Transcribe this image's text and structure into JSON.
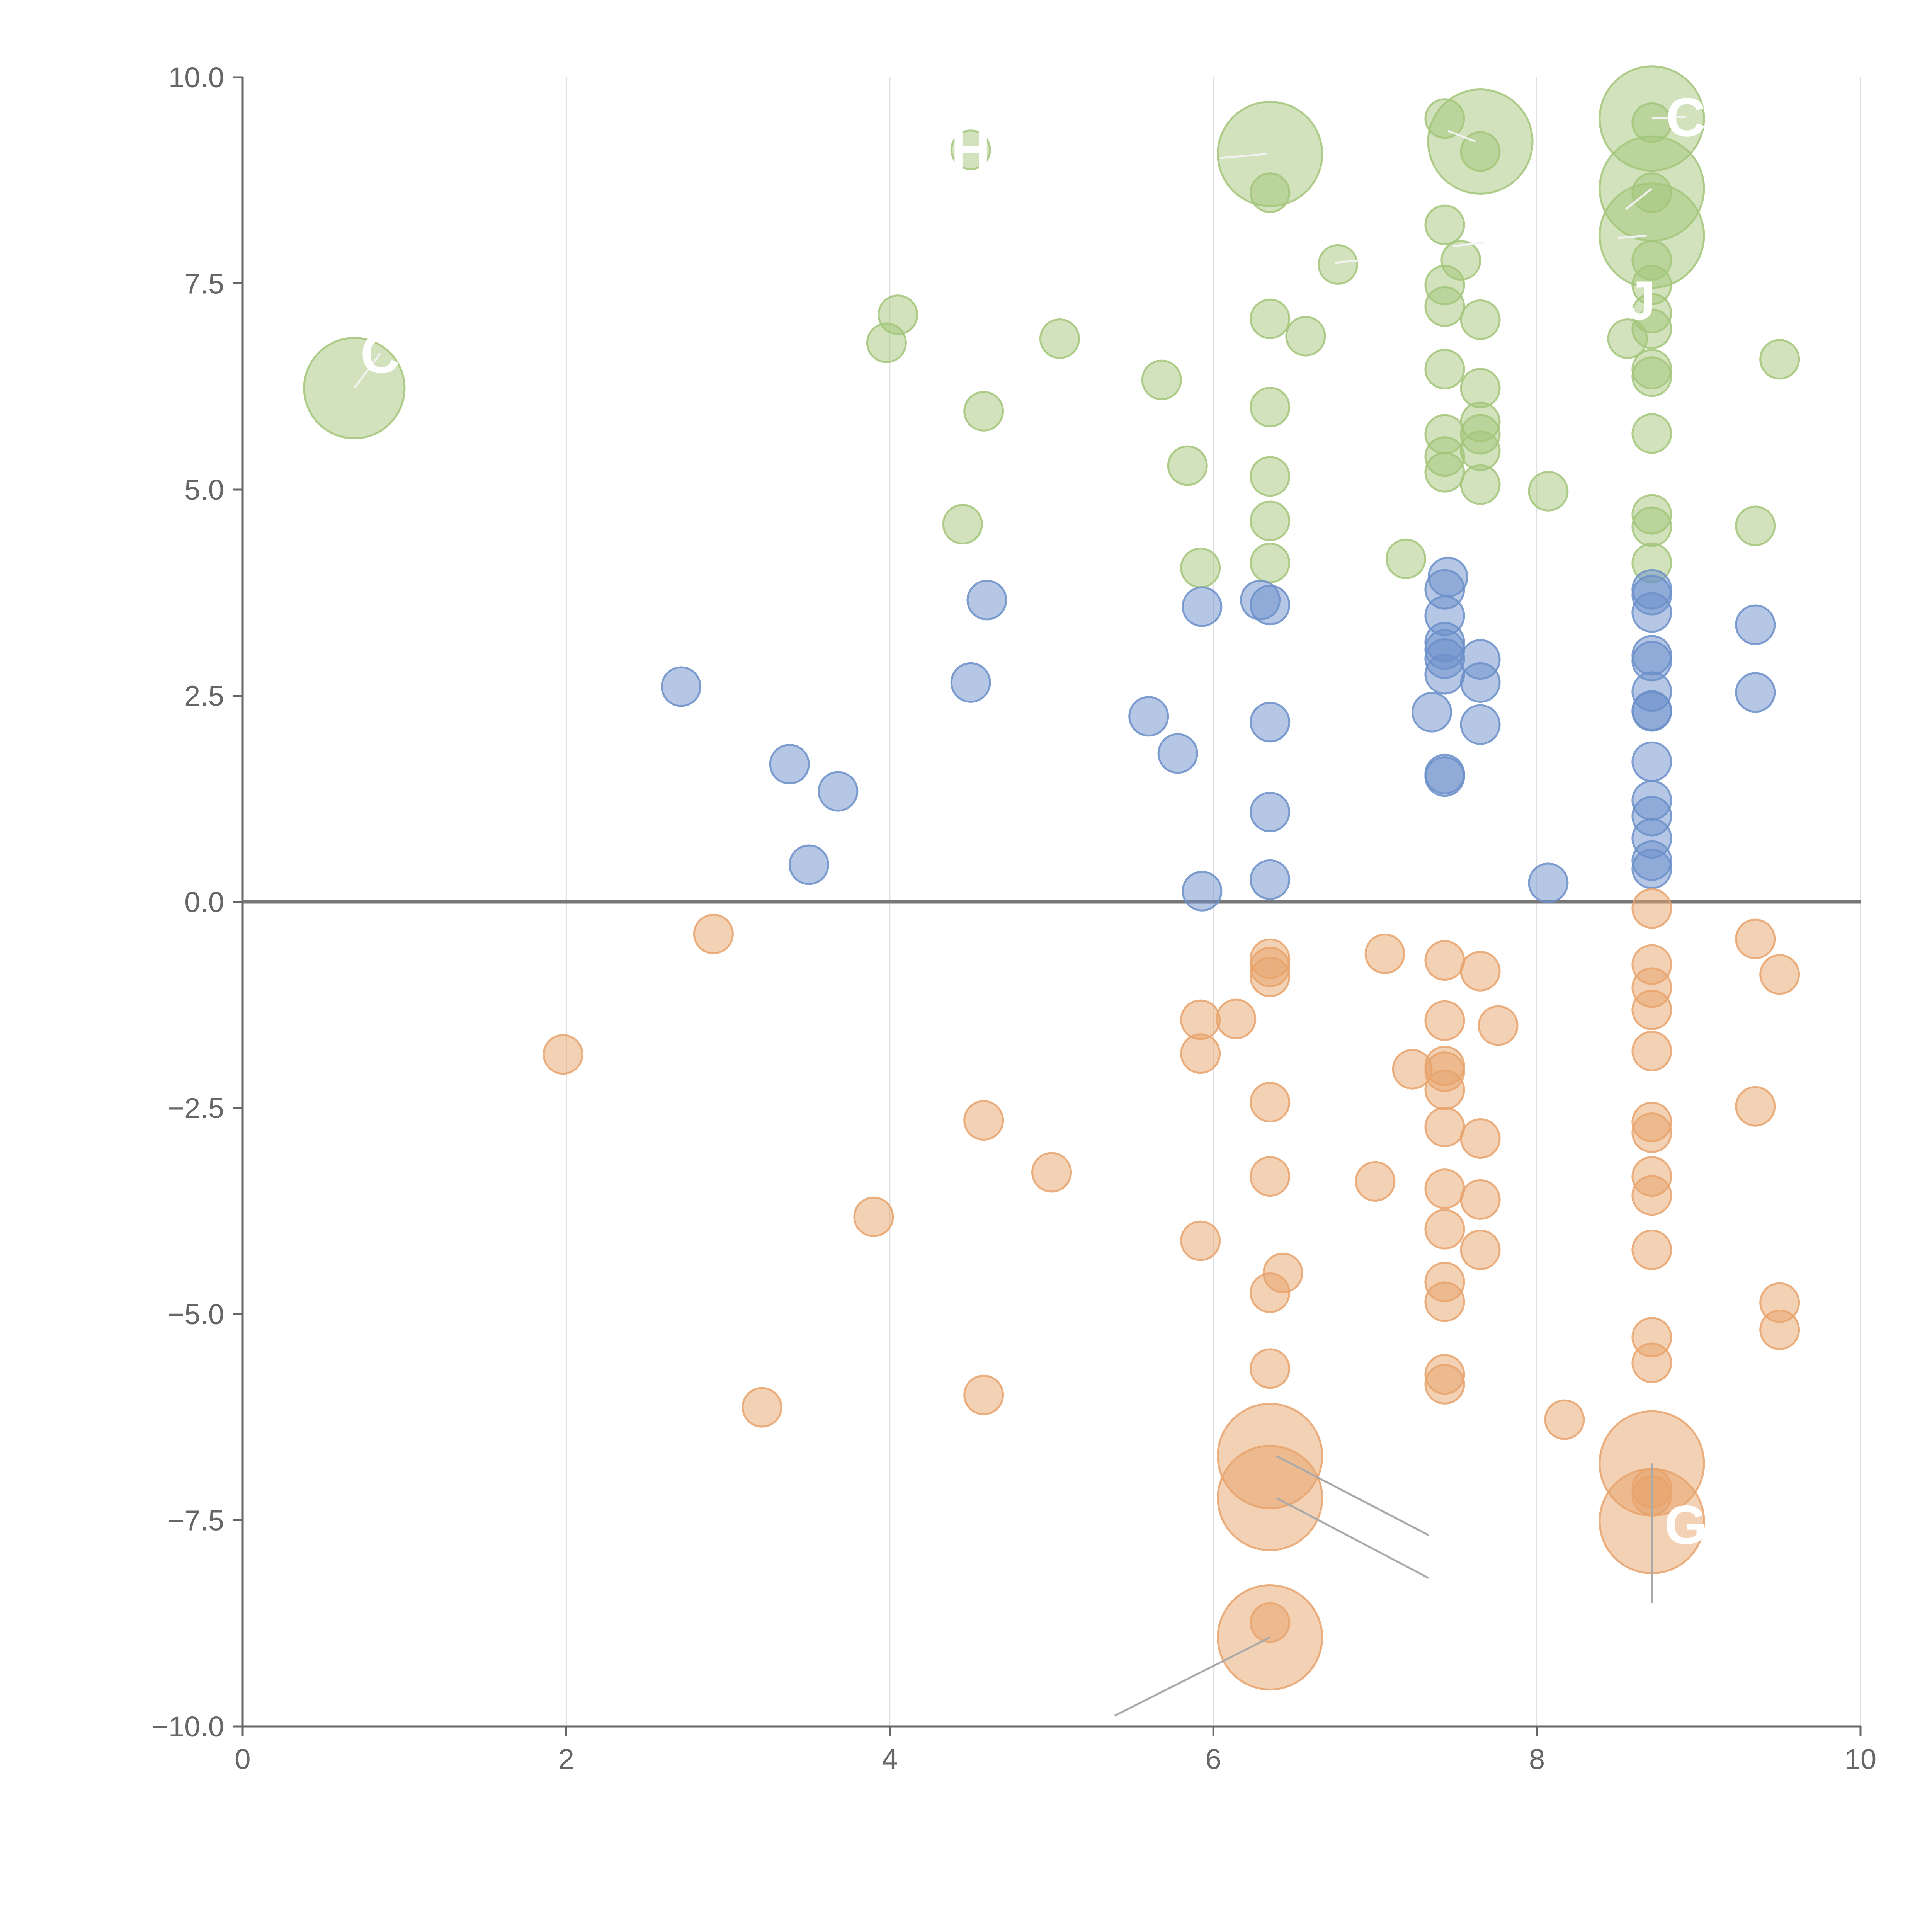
{
  "chart_data": {
    "type": "scatter",
    "title": "",
    "xlabel": "",
    "ylabel": "",
    "xlim": [
      0,
      10
    ],
    "ylim": [
      -10,
      10
    ],
    "x_ticks": [
      0,
      2,
      4,
      6,
      8,
      10
    ],
    "x_tick_labels": [
      "0",
      "2",
      "4",
      "6",
      "8",
      "10"
    ],
    "y_ticks": [
      -10,
      -7.5,
      -5,
      -2.5,
      0,
      2.5,
      5,
      7.5,
      10
    ],
    "y_tick_labels": [
      "−10.0",
      "−7.5",
      "−5.0",
      "−2.5",
      "0.0",
      "2.5",
      "5.0",
      "7.5",
      "10.0"
    ],
    "grid": "vertical",
    "zero_line": true,
    "colors": {
      "green": "#a3c67a",
      "blue": "#6b8fc9",
      "orange": "#e8a36c"
    },
    "series": [
      {
        "name": "green",
        "points": [
          [
            0.69,
            6.23,
            2.6
          ],
          [
            3.98,
            6.78,
            1
          ],
          [
            4.05,
            7.12,
            1
          ],
          [
            4.45,
            4.58,
            1
          ],
          [
            4.5,
            9.12,
            1
          ],
          [
            4.58,
            5.95,
            1
          ],
          [
            5.05,
            6.83,
            1
          ],
          [
            5.68,
            6.33,
            1
          ],
          [
            5.84,
            5.29,
            1
          ],
          [
            5.92,
            4.05,
            1
          ],
          [
            6.35,
            9.07,
            2.7
          ],
          [
            6.35,
            8.6,
            1
          ],
          [
            6.35,
            7.07,
            1
          ],
          [
            6.35,
            6.0,
            1
          ],
          [
            6.35,
            5.16,
            1
          ],
          [
            6.35,
            4.62,
            1
          ],
          [
            6.35,
            4.11,
            1
          ],
          [
            6.57,
            6.86,
            1
          ],
          [
            6.77,
            7.73,
            1
          ],
          [
            7.19,
            4.16,
            1
          ],
          [
            7.43,
            9.5,
            1
          ],
          [
            7.43,
            8.21,
            1
          ],
          [
            7.43,
            7.48,
            1
          ],
          [
            7.43,
            7.22,
            1
          ],
          [
            7.43,
            6.46,
            1
          ],
          [
            7.43,
            5.67,
            1
          ],
          [
            7.43,
            5.4,
            1
          ],
          [
            7.43,
            5.21,
            1
          ],
          [
            7.53,
            7.78,
            1
          ],
          [
            7.65,
            9.22,
            2.7
          ],
          [
            7.65,
            9.1,
            1
          ],
          [
            7.65,
            7.06,
            1
          ],
          [
            7.65,
            6.23,
            1
          ],
          [
            7.65,
            5.82,
            1
          ],
          [
            7.65,
            5.67,
            1
          ],
          [
            7.65,
            5.47,
            1
          ],
          [
            7.65,
            5.06,
            1
          ],
          [
            8.07,
            4.98,
            1
          ],
          [
            8.56,
            6.83,
            1
          ],
          [
            8.71,
            9.5,
            2.7
          ],
          [
            8.71,
            9.45,
            1
          ],
          [
            8.71,
            8.65,
            2.7
          ],
          [
            8.71,
            8.6,
            1
          ],
          [
            8.71,
            8.08,
            2.7
          ],
          [
            8.71,
            7.78,
            1
          ],
          [
            8.71,
            7.48,
            1
          ],
          [
            8.71,
            7.14,
            1
          ],
          [
            8.71,
            6.95,
            1
          ],
          [
            8.71,
            6.46,
            1
          ],
          [
            8.71,
            6.37,
            1
          ],
          [
            8.71,
            5.68,
            1
          ],
          [
            8.71,
            4.7,
            1
          ],
          [
            8.71,
            4.55,
            1
          ],
          [
            8.71,
            4.11,
            1
          ],
          [
            9.35,
            4.56,
            1
          ],
          [
            9.5,
            6.58,
            1
          ]
        ]
      },
      {
        "name": "blue",
        "points": [
          [
            2.71,
            2.61,
            1
          ],
          [
            3.38,
            1.67,
            1
          ],
          [
            3.5,
            0.45,
            1
          ],
          [
            3.68,
            1.34,
            1
          ],
          [
            4.5,
            2.66,
            1
          ],
          [
            4.6,
            3.66,
            1
          ],
          [
            5.6,
            2.25,
            1
          ],
          [
            5.78,
            1.8,
            1
          ],
          [
            5.93,
            3.58,
            1
          ],
          [
            5.93,
            0.13,
            1
          ],
          [
            6.29,
            3.66,
            1
          ],
          [
            6.35,
            3.6,
            1
          ],
          [
            6.35,
            2.18,
            1
          ],
          [
            6.35,
            1.09,
            1
          ],
          [
            6.35,
            0.27,
            1
          ],
          [
            7.35,
            2.3,
            1
          ],
          [
            7.43,
            3.79,
            1
          ],
          [
            7.43,
            3.47,
            1
          ],
          [
            7.43,
            3.15,
            1
          ],
          [
            7.43,
            3.06,
            1
          ],
          [
            7.43,
            2.95,
            1
          ],
          [
            7.43,
            2.76,
            1
          ],
          [
            7.43,
            1.55,
            1
          ],
          [
            7.43,
            1.52,
            1
          ],
          [
            7.45,
            3.94,
            1
          ],
          [
            7.65,
            2.94,
            1
          ],
          [
            7.65,
            2.66,
            1
          ],
          [
            7.65,
            2.15,
            1
          ],
          [
            8.07,
            0.23,
            1
          ],
          [
            8.71,
            3.79,
            1
          ],
          [
            8.71,
            3.72,
            1
          ],
          [
            8.71,
            3.51,
            1
          ],
          [
            8.71,
            2.99,
            1
          ],
          [
            8.71,
            2.92,
            1
          ],
          [
            8.71,
            2.55,
            1
          ],
          [
            8.71,
            2.32,
            1
          ],
          [
            8.71,
            2.31,
            1
          ],
          [
            8.71,
            1.7,
            1
          ],
          [
            8.71,
            1.23,
            1
          ],
          [
            8.71,
            1.04,
            1
          ],
          [
            8.71,
            0.77,
            1
          ],
          [
            8.71,
            0.5,
            1
          ],
          [
            8.71,
            0.4,
            1
          ],
          [
            9.35,
            3.36,
            1
          ],
          [
            9.35,
            2.54,
            1
          ]
        ]
      },
      {
        "name": "orange",
        "points": [
          [
            1.98,
            -1.85,
            1
          ],
          [
            2.91,
            -0.39,
            1
          ],
          [
            3.21,
            -6.13,
            1
          ],
          [
            3.9,
            -3.82,
            1
          ],
          [
            4.58,
            -2.65,
            1
          ],
          [
            4.58,
            -5.98,
            1
          ],
          [
            5.0,
            -3.28,
            1
          ],
          [
            5.92,
            -1.43,
            1
          ],
          [
            5.92,
            -1.84,
            1
          ],
          [
            5.92,
            -4.11,
            1
          ],
          [
            6.14,
            -1.42,
            1
          ],
          [
            6.35,
            -0.69,
            1
          ],
          [
            6.35,
            -0.79,
            1
          ],
          [
            6.35,
            -0.91,
            1
          ],
          [
            6.35,
            -2.43,
            1
          ],
          [
            6.35,
            -3.33,
            1
          ],
          [
            6.35,
            -4.74,
            1
          ],
          [
            6.35,
            -5.66,
            1
          ],
          [
            6.35,
            -6.72,
            2.7
          ],
          [
            6.35,
            -7.23,
            2.7
          ],
          [
            6.35,
            -8.92,
            2.7
          ],
          [
            6.35,
            -8.74,
            1
          ],
          [
            6.43,
            -4.5,
            1
          ],
          [
            7.0,
            -3.39,
            1
          ],
          [
            7.06,
            -0.63,
            1
          ],
          [
            7.23,
            -2.03,
            1
          ],
          [
            7.43,
            -0.71,
            1
          ],
          [
            7.43,
            -1.44,
            1
          ],
          [
            7.43,
            -1.99,
            1
          ],
          [
            7.43,
            -2.06,
            1
          ],
          [
            7.43,
            -2.28,
            1
          ],
          [
            7.43,
            -2.73,
            1
          ],
          [
            7.43,
            -3.48,
            1
          ],
          [
            7.43,
            -3.97,
            1
          ],
          [
            7.43,
            -4.61,
            1
          ],
          [
            7.43,
            -4.85,
            1
          ],
          [
            7.43,
            -5.73,
            1
          ],
          [
            7.43,
            -5.85,
            1
          ],
          [
            7.65,
            -0.84,
            1
          ],
          [
            7.65,
            -2.87,
            1
          ],
          [
            7.65,
            -3.61,
            1
          ],
          [
            7.65,
            -4.22,
            1
          ],
          [
            7.76,
            -1.5,
            1
          ],
          [
            8.17,
            -6.28,
            1
          ],
          [
            8.71,
            -0.08,
            1
          ],
          [
            8.71,
            -0.76,
            1
          ],
          [
            8.71,
            -1.04,
            1
          ],
          [
            8.71,
            -1.31,
            1
          ],
          [
            8.71,
            -1.81,
            1
          ],
          [
            8.71,
            -2.67,
            1
          ],
          [
            8.71,
            -2.8,
            1
          ],
          [
            8.71,
            -3.33,
            1
          ],
          [
            8.71,
            -3.56,
            1
          ],
          [
            8.71,
            -4.22,
            1
          ],
          [
            8.71,
            -5.28,
            1
          ],
          [
            8.71,
            -5.59,
            1
          ],
          [
            8.71,
            -6.81,
            2.7
          ],
          [
            8.71,
            -7.11,
            1
          ],
          [
            8.71,
            -7.2,
            1
          ],
          [
            8.71,
            -7.51,
            2.7
          ],
          [
            9.35,
            -0.45,
            1
          ],
          [
            9.35,
            -2.48,
            1
          ],
          [
            9.5,
            -0.88,
            1
          ],
          [
            9.5,
            -4.86,
            1
          ],
          [
            9.5,
            -5.19,
            1
          ]
        ]
      }
    ],
    "annotations": [
      {
        "text": "C",
        "x": 8.71,
        "y": 9.5,
        "label_x": 8.92,
        "label_y": 9.52,
        "line": "light"
      },
      {
        "text": "H",
        "x": 4.5,
        "y": 9.12,
        "label_x": 4.5,
        "label_y": 9.12,
        "line": "none"
      },
      {
        "text": "J",
        "x": 8.71,
        "y": 8.08,
        "label_x": 8.64,
        "label_y": 7.3,
        "line": "none"
      },
      {
        "text": "C",
        "x": 0.69,
        "y": 6.23,
        "label_x": 0.85,
        "label_y": 6.65,
        "line": "light"
      },
      {
        "text": "G",
        "x": 8.71,
        "y": -7.51,
        "label_x": 8.92,
        "label_y": -7.55,
        "line": "none"
      }
    ],
    "leader_lines": [
      {
        "x1": 6.39,
        "y1": -6.72,
        "x2": 7.33,
        "y2": -7.68,
        "tone": "gray"
      },
      {
        "x1": 6.39,
        "y1": -7.23,
        "x2": 7.33,
        "y2": -8.2,
        "tone": "gray"
      },
      {
        "x1": 6.35,
        "y1": -8.92,
        "x2": 5.39,
        "y2": -9.87,
        "tone": "gray"
      },
      {
        "x1": 8.71,
        "y1": -6.81,
        "x2": 8.71,
        "y2": -8.5,
        "tone": "gray"
      },
      {
        "x1": 6.33,
        "y1": 9.07,
        "x2": 6.04,
        "y2": 9.02,
        "tone": "light"
      },
      {
        "x1": 7.62,
        "y1": 9.22,
        "x2": 7.45,
        "y2": 9.35,
        "tone": "light"
      },
      {
        "x1": 7.68,
        "y1": 8.0,
        "x2": 7.48,
        "y2": 7.95,
        "tone": "light"
      },
      {
        "x1": 8.71,
        "y1": 8.65,
        "x2": 8.55,
        "y2": 8.4,
        "tone": "light"
      },
      {
        "x1": 8.68,
        "y1": 8.08,
        "x2": 8.5,
        "y2": 8.05,
        "tone": "light"
      },
      {
        "x1": 6.75,
        "y1": 7.75,
        "x2": 6.9,
        "y2": 7.78,
        "tone": "light"
      }
    ]
  }
}
